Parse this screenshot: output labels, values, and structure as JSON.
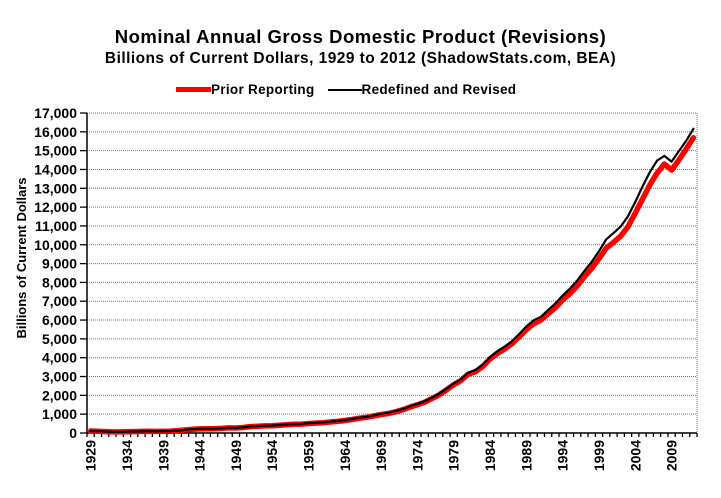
{
  "chart_data": {
    "type": "line",
    "title": "Nominal Annual Gross Domestic Product (Revisions)",
    "subtitle": "Billions of Current Dollars, 1929 to 2012 (ShadowStats.com, BEA)",
    "ylabel": "Billions of Current Dollars",
    "xlabel": "",
    "x_start": 1929,
    "x_end": 2012,
    "x_tick_label_step": 5,
    "ylim": [
      0,
      17000
    ],
    "y_tick_step": 1000,
    "grid": "horizontal dotted gray",
    "legend_position": "top-center",
    "series": [
      {
        "name": "Prior Reporting",
        "color": "#FF0000",
        "width": 5.5,
        "values": [
          103.6,
          91.2,
          76.5,
          58.7,
          56.4,
          66.0,
          73.3,
          83.8,
          91.9,
          86.1,
          92.2,
          101.4,
          126.7,
          161.9,
          198.6,
          219.8,
          223.0,
          222.2,
          244.1,
          269.1,
          267.2,
          293.7,
          339.3,
          358.3,
          379.3,
          380.4,
          414.7,
          437.4,
          461.1,
          467.2,
          506.6,
          526.4,
          544.7,
          585.6,
          617.7,
          663.6,
          719.1,
          787.8,
          832.6,
          910.0,
          984.6,
          1038.5,
          1127.1,
          1238.3,
          1382.7,
          1500.0,
          1638.3,
          1825.3,
          2030.9,
          2294.7,
          2563.3,
          2789.5,
          3128.4,
          3255.0,
          3536.7,
          3933.2,
          4220.3,
          4462.8,
          4739.5,
          5103.8,
          5484.4,
          5803.1,
          5995.9,
          6337.7,
          6657.4,
          7072.2,
          7397.7,
          7816.9,
          8304.3,
          8747.0,
          9268.4,
          9817.0,
          10128.0,
          10469.6,
          10960.8,
          11685.9,
          12421.9,
          13178.4,
          13807.5,
          14291.5,
          13973.7,
          14498.9,
          15075.7,
          15684.8
        ]
      },
      {
        "name": "Redefined and Revised",
        "color": "#000000",
        "width": 2.2,
        "values": [
          104.6,
          92.2,
          77.4,
          59.5,
          57.2,
          66.8,
          74.3,
          84.9,
          93.0,
          87.4,
          93.5,
          102.9,
          129.4,
          166.0,
          203.1,
          224.6,
          228.2,
          227.8,
          249.9,
          274.8,
          272.8,
          300.2,
          347.3,
          367.7,
          389.7,
          391.1,
          426.2,
          450.1,
          474.9,
          482.0,
          522.5,
          543.3,
          563.3,
          605.1,
          638.6,
          685.8,
          743.7,
          815.0,
          861.7,
          942.5,
          1019.9,
          1075.9,
          1167.8,
          1282.4,
          1428.5,
          1548.8,
          1688.9,
          1877.6,
          2086.0,
          2356.6,
          2632.1,
          2862.5,
          3211.0,
          3345.0,
          3638.1,
          4040.7,
          4346.7,
          4590.2,
          4870.2,
          5252.6,
          5657.7,
          5979.6,
          6174.0,
          6539.3,
          6878.7,
          7308.8,
          7664.1,
          8100.2,
          8608.5,
          9089.2,
          9660.6,
          10284.8,
          10621.8,
          10977.5,
          11510.7,
          12274.9,
          13093.7,
          13855.9,
          14477.6,
          14718.6,
          14418.7,
          14964.4,
          15517.9,
          16163.2
        ]
      }
    ]
  }
}
